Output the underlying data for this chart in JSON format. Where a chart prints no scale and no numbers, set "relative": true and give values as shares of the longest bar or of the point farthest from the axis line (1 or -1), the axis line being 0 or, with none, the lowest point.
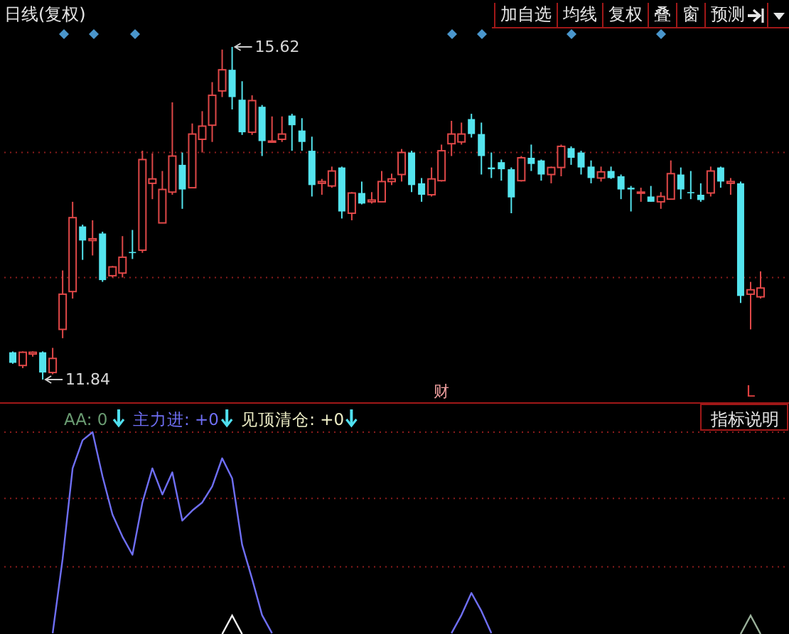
{
  "chart_data": [
    {
      "type": "candlestick",
      "title": "日线(复权)",
      "categories": [
        null,
        null,
        null,
        null,
        null,
        null,
        null,
        null,
        null,
        null,
        null,
        null,
        null,
        null,
        null,
        null,
        null,
        null,
        null,
        null,
        null,
        null,
        null,
        null,
        null,
        null,
        null,
        null,
        null,
        null,
        null,
        null,
        null,
        null,
        null,
        null,
        null,
        null,
        null,
        null,
        null,
        null,
        null,
        null,
        null,
        null,
        null,
        null,
        null,
        null,
        null,
        null,
        null,
        null,
        null,
        null,
        null,
        null,
        null,
        null,
        null,
        null,
        null,
        null,
        null,
        null,
        null,
        null,
        null,
        null,
        null,
        null,
        null,
        null,
        null,
        null
      ],
      "ohlc": [
        [
          12.15,
          12.16,
          12.02,
          12.03
        ],
        [
          12.0,
          12.16,
          11.97,
          12.15
        ],
        [
          12.13,
          12.16,
          12.1,
          12.15
        ],
        [
          12.15,
          12.16,
          11.84,
          11.92
        ],
        [
          11.92,
          12.2,
          11.9,
          12.08
        ],
        [
          12.41,
          13.08,
          12.31,
          12.81
        ],
        [
          12.84,
          13.86,
          12.76,
          13.68
        ],
        [
          13.58,
          13.6,
          13.2,
          13.42
        ],
        [
          13.42,
          13.65,
          13.25,
          13.44
        ],
        [
          13.5,
          13.52,
          12.95,
          12.97
        ],
        [
          13.02,
          13.13,
          13.0,
          13.12
        ],
        [
          13.05,
          13.47,
          13.0,
          13.23
        ],
        [
          13.29,
          13.54,
          13.21,
          13.28
        ],
        [
          13.31,
          14.44,
          13.28,
          14.34
        ],
        [
          14.07,
          14.41,
          13.89,
          14.12
        ],
        [
          13.62,
          14.21,
          13.62,
          14.0
        ],
        [
          13.97,
          14.99,
          13.94,
          14.38
        ],
        [
          14.28,
          14.42,
          13.78,
          14.0
        ],
        [
          14.02,
          14.75,
          14.02,
          14.63
        ],
        [
          14.57,
          14.89,
          14.42,
          14.72
        ],
        [
          14.73,
          15.22,
          14.54,
          15.07
        ],
        [
          15.12,
          15.59,
          15.05,
          15.36
        ],
        [
          15.36,
          15.62,
          14.91,
          15.05
        ],
        [
          15.02,
          15.23,
          14.62,
          14.65
        ],
        [
          14.65,
          15.07,
          14.62,
          15.01
        ],
        [
          14.94,
          14.96,
          14.38,
          14.55
        ],
        [
          14.54,
          14.83,
          14.54,
          14.55
        ],
        [
          14.57,
          14.83,
          14.54,
          14.63
        ],
        [
          14.84,
          14.86,
          14.44,
          14.73
        ],
        [
          14.67,
          14.81,
          14.44,
          14.54
        ],
        [
          14.44,
          14.6,
          13.92,
          14.05
        ],
        [
          14.07,
          14.12,
          13.94,
          14.09
        ],
        [
          14.04,
          14.26,
          14.02,
          14.21
        ],
        [
          14.25,
          14.26,
          13.67,
          13.75
        ],
        [
          13.73,
          13.97,
          13.65,
          13.96
        ],
        [
          13.96,
          14.09,
          13.83,
          13.84
        ],
        [
          13.86,
          13.97,
          13.84,
          13.88
        ],
        [
          13.86,
          14.21,
          13.86,
          14.09
        ],
        [
          14.09,
          14.18,
          14.05,
          14.12
        ],
        [
          14.17,
          14.46,
          14.09,
          14.42
        ],
        [
          14.42,
          14.44,
          13.97,
          14.05
        ],
        [
          14.07,
          14.13,
          13.86,
          13.94
        ],
        [
          13.94,
          14.25,
          13.92,
          14.12
        ],
        [
          14.1,
          14.51,
          14.09,
          14.44
        ],
        [
          14.52,
          14.78,
          14.38,
          14.63
        ],
        [
          14.54,
          14.76,
          14.51,
          14.63
        ],
        [
          14.8,
          14.86,
          14.59,
          14.63
        ],
        [
          14.63,
          14.76,
          14.17,
          14.38
        ],
        [
          14.25,
          14.42,
          14.13,
          14.23
        ],
        [
          14.31,
          14.34,
          14.1,
          14.23
        ],
        [
          14.23,
          14.25,
          13.73,
          13.91
        ],
        [
          14.1,
          14.38,
          14.09,
          14.36
        ],
        [
          14.36,
          14.51,
          14.21,
          14.29
        ],
        [
          14.33,
          14.34,
          14.1,
          14.17
        ],
        [
          14.17,
          14.26,
          14.07,
          14.25
        ],
        [
          14.25,
          14.51,
          14.15,
          14.49
        ],
        [
          14.47,
          14.49,
          14.28,
          14.36
        ],
        [
          14.42,
          14.44,
          14.17,
          14.25
        ],
        [
          14.26,
          14.33,
          14.07,
          14.13
        ],
        [
          14.13,
          14.26,
          14.09,
          14.2
        ],
        [
          14.21,
          14.26,
          14.12,
          14.13
        ],
        [
          14.15,
          14.17,
          13.89,
          14.0
        ],
        [
          14.02,
          14.04,
          13.75,
          14.0
        ],
        [
          13.96,
          14.02,
          13.86,
          13.97
        ],
        [
          13.92,
          14.04,
          13.86,
          13.86
        ],
        [
          13.86,
          13.97,
          13.78,
          13.92
        ],
        [
          13.89,
          14.33,
          13.89,
          14.18
        ],
        [
          14.17,
          14.25,
          13.89,
          14.0
        ],
        [
          13.97,
          14.21,
          13.89,
          13.96
        ],
        [
          13.94,
          14.07,
          13.86,
          13.88
        ],
        [
          13.96,
          14.26,
          13.92,
          14.21
        ],
        [
          14.25,
          14.26,
          14.02,
          14.09
        ],
        [
          14.07,
          14.13,
          13.94,
          14.09
        ],
        [
          14.07,
          14.09,
          12.71,
          12.79
        ],
        [
          12.81,
          12.95,
          12.41,
          12.86
        ],
        [
          12.78,
          13.07,
          12.76,
          12.88
        ]
      ],
      "yticks": [
        {
          "value": 13,
          "label": null
        },
        {
          "value": 14.42,
          "label": null
        }
      ],
      "grid": "y",
      "annotations": [
        "15.62",
        "11.84",
        "财",
        "L",
        "加自选",
        "均线",
        "复权",
        "叠",
        "窗",
        "预测"
      ]
    },
    {
      "type": "line",
      "relative": true,
      "categories": [
        null,
        null,
        null,
        null,
        null,
        null,
        null,
        null,
        null,
        null,
        null,
        null,
        null,
        null,
        null,
        null,
        null,
        null,
        null,
        null,
        null,
        null,
        null,
        null,
        null,
        null,
        null,
        null,
        null,
        null,
        null,
        null,
        null,
        null,
        null,
        null,
        null,
        null,
        null,
        null,
        null,
        null,
        null,
        null,
        null,
        null,
        null,
        null,
        null,
        null,
        null,
        null,
        null,
        null,
        null,
        null,
        null,
        null,
        null,
        null,
        null,
        null,
        null,
        null,
        null,
        null,
        null,
        null,
        null,
        null,
        null,
        null,
        null,
        null,
        null,
        null
      ],
      "series": [
        {
          "name": "主力进: +0",
          "color": "#6f6ff5",
          "values": [
            null,
            null,
            null,
            null,
            0,
            0.37,
            0.82,
            0.96,
            1,
            0.78,
            0.59,
            0.48,
            0.39,
            0.65,
            0.82,
            0.69,
            0.8,
            0.56,
            0.61,
            0.65,
            0.73,
            0.87,
            0.77,
            0.44,
            0.27,
            0.09,
            0,
            null,
            null,
            null,
            null,
            null,
            null,
            null,
            null,
            null,
            null,
            null,
            null,
            null,
            null,
            null,
            null,
            null,
            0,
            0.09,
            0.2,
            0.11,
            0,
            null,
            null,
            null,
            null,
            null,
            null,
            null,
            null,
            null,
            null,
            null,
            null,
            null,
            null,
            null,
            null,
            null,
            null,
            null,
            null,
            null,
            null,
            null,
            null,
            null,
            null,
            null
          ]
        }
      ],
      "ref_lines": [
        {
          "axis": "y",
          "value": 0.33,
          "color": "#8a1c1c",
          "line_style": "dotted"
        },
        {
          "axis": "y",
          "value": 0.67,
          "color": "#8a1c1c",
          "line_style": "dotted"
        },
        {
          "axis": "y",
          "value": 1,
          "color": "#8a1c1c",
          "line_style": "dotted"
        }
      ],
      "legend": "top left",
      "annotations": [
        "AA: 0",
        "见顶清仓: +0",
        "指标说明"
      ]
    }
  ]
}
